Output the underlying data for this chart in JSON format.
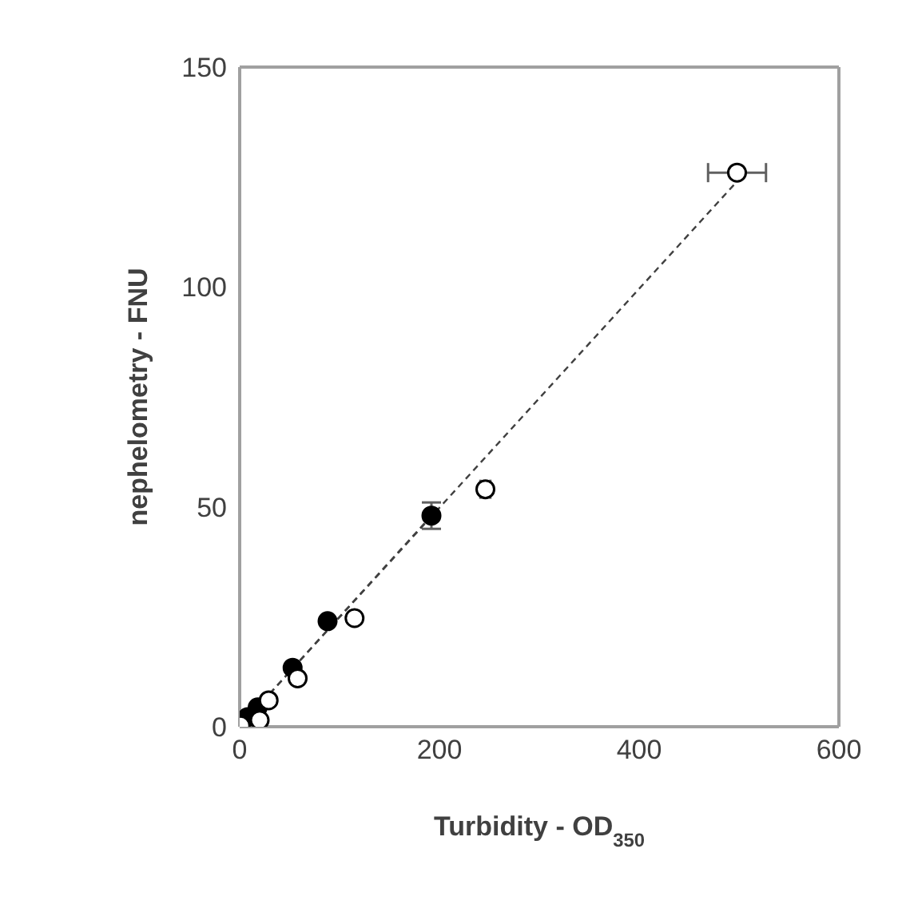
{
  "chart_data": {
    "type": "scatter",
    "xlabel": "Turbidity - OD$_{350}$",
    "ylabel": "nephelometry - FNU",
    "xlim": [
      0,
      600
    ],
    "xticks": [
      0,
      200,
      400,
      600
    ],
    "ylim": [
      0,
      150
    ],
    "yticks": [
      0,
      50,
      100,
      150
    ],
    "grid": false,
    "legend": false,
    "marker": "circle",
    "series": [
      {
        "type": "line",
        "color": "#404040",
        "line_style": "dashed",
        "marker": "none",
        "x": [
          0,
          498
        ],
        "values": [
          0,
          124
        ]
      },
      {
        "type": "line",
        "color": "#404040",
        "line_style": "dashed",
        "marker": "none",
        "x": [
          0,
          192
        ],
        "values": [
          0,
          48
        ]
      },
      {
        "type": "scatter",
        "color": "#000000",
        "x": [
          8,
          13,
          18,
          53,
          88,
          192
        ],
        "values": [
          2.2,
          null,
          4.4,
          13.4,
          24,
          48
        ],
        "errors": [
          null,
          null,
          null,
          null,
          null,
          3
        ]
      },
      {
        "type": "scatter",
        "color": "#ffffff",
        "x": [
          1,
          20,
          29,
          58,
          115,
          246,
          498
        ],
        "values": [
          0.3,
          1.5,
          6,
          11,
          24.7,
          54,
          126
        ],
        "xerrors": [
          null,
          null,
          null,
          null,
          null,
          5,
          29
        ]
      }
    ]
  }
}
